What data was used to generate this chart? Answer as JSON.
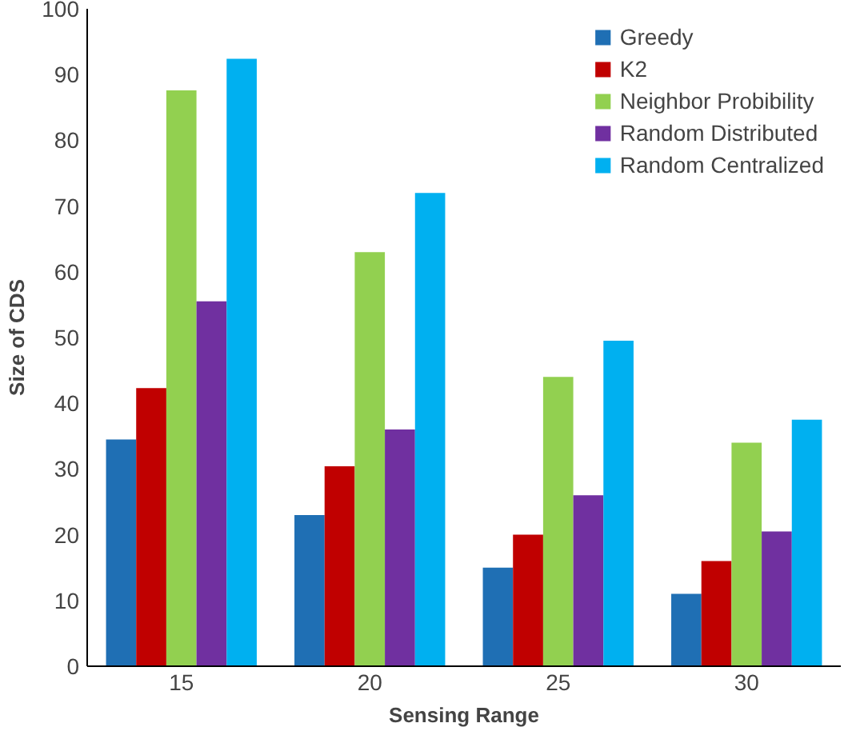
{
  "chart_data": {
    "type": "bar",
    "xlabel": "Sensing Range",
    "ylabel": "Size of CDS",
    "categories": [
      "15",
      "20",
      "25",
      "30"
    ],
    "series": [
      {
        "name": "Greedy",
        "color": "#1f6fb4",
        "values": [
          34.5,
          23,
          15,
          11
        ]
      },
      {
        "name": "K2",
        "color": "#c00000",
        "values": [
          42.3,
          30.4,
          20,
          16
        ]
      },
      {
        "name": "Neighbor Probibility",
        "color": "#92d050",
        "values": [
          87.6,
          63,
          44,
          34
        ]
      },
      {
        "name": "Random Distributed",
        "color": "#7030a0",
        "values": [
          55.5,
          36,
          26,
          20.5
        ]
      },
      {
        "name": "Random Centralized",
        "color": "#00b0f0",
        "values": [
          92.4,
          72,
          49.5,
          37.5
        ]
      }
    ],
    "ylim": [
      0,
      100
    ],
    "yticks": [
      0,
      10,
      20,
      30,
      40,
      50,
      60,
      70,
      80,
      90,
      100
    ],
    "grid": false,
    "legend": "top right"
  }
}
